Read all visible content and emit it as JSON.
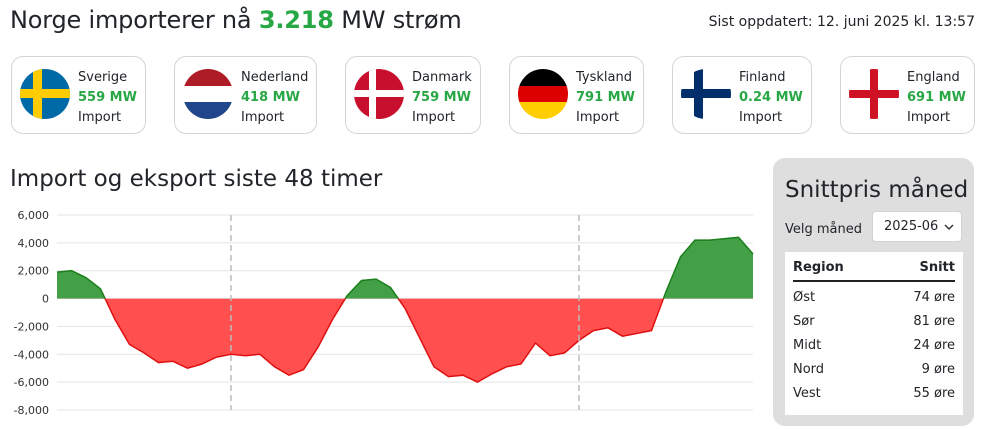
{
  "header": {
    "title_prefix": "Norge importerer nå",
    "title_value": "3.218",
    "title_suffix": "MW strøm",
    "updated": "Sist oppdatert: 12. juni 2025 kl. 13:57"
  },
  "countries": [
    {
      "name": "Sverige",
      "mw": "559 MW",
      "direction": "Import",
      "flag_icon": "sweden-flag-icon"
    },
    {
      "name": "Nederland",
      "mw": "418 MW",
      "direction": "Import",
      "flag_icon": "netherlands-flag-icon"
    },
    {
      "name": "Danmark",
      "mw": "759 MW",
      "direction": "Import",
      "flag_icon": "denmark-flag-icon"
    },
    {
      "name": "Tyskland",
      "mw": "791 MW",
      "direction": "Import",
      "flag_icon": "germany-flag-icon"
    },
    {
      "name": "Finland",
      "mw": "0.24 MW",
      "direction": "Import",
      "flag_icon": "finland-flag-icon"
    },
    {
      "name": "England",
      "mw": "691 MW",
      "direction": "Import",
      "flag_icon": "england-flag-icon"
    }
  ],
  "colors": {
    "accent_green": "#28a745",
    "import_fill": "#43a047",
    "export_fill": "#ff4f4f"
  },
  "chart_title": "Import og eksport siste 48 timer",
  "chart_data": {
    "type": "area",
    "title": "Import og eksport siste 48 timer",
    "xlabel": "",
    "ylabel": "",
    "ylim": [
      -8000,
      6000
    ],
    "y_ticks": [
      "6,000",
      "4,000",
      "2,000",
      "0",
      "-2,000",
      "-4,000",
      "-6,000",
      "-8,000"
    ],
    "y_tick_values": [
      6000,
      4000,
      2000,
      0,
      -2000,
      -4000,
      -6000,
      -8000
    ],
    "x_range": [
      0,
      48
    ],
    "x_dividers": [
      12,
      36
    ],
    "grid": true,
    "x": [
      0,
      1,
      2,
      3,
      4,
      5,
      6,
      7,
      8,
      9,
      10,
      11,
      12,
      13,
      14,
      15,
      16,
      17,
      18,
      19,
      20,
      21,
      22,
      23,
      24,
      25,
      26,
      27,
      28,
      29,
      30,
      31,
      32,
      33,
      34,
      35,
      36,
      37,
      38,
      39,
      40,
      41,
      42,
      43,
      44,
      45,
      46,
      47,
      48
    ],
    "values": [
      1900,
      2000,
      1500,
      700,
      -1500,
      -3300,
      -3900,
      -4600,
      -4500,
      -5000,
      -4700,
      -4200,
      -4000,
      -4100,
      -4000,
      -4900,
      -5500,
      -5100,
      -3500,
      -1500,
      200,
      1300,
      1400,
      800,
      -700,
      -2800,
      -4900,
      -5600,
      -5500,
      -6000,
      -5400,
      -4900,
      -4700,
      -3200,
      -4100,
      -3900,
      -3000,
      -2300,
      -2100,
      -2700,
      -2500,
      -2300,
      500,
      3000,
      4200,
      4200,
      4300,
      4400,
      3200
    ]
  },
  "panel": {
    "title": "Snittpris måned",
    "month_label": "Velg måned",
    "month_value": "2025-06",
    "col_region": "Region",
    "col_avg": "Snitt",
    "rows": [
      {
        "region": "Øst",
        "price": "74 øre"
      },
      {
        "region": "Sør",
        "price": "81 øre"
      },
      {
        "region": "Midt",
        "price": "24 øre"
      },
      {
        "region": "Nord",
        "price": "9 øre"
      },
      {
        "region": "Vest",
        "price": "55 øre"
      }
    ]
  }
}
